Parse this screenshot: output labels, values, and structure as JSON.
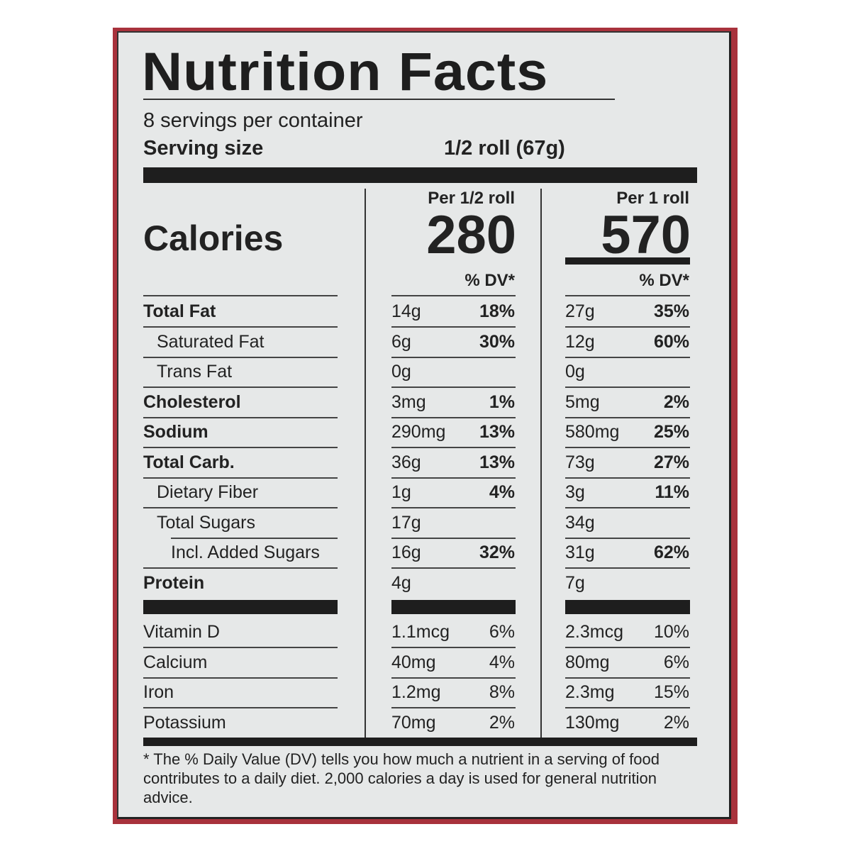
{
  "label": {
    "title": "Nutrition Facts",
    "servings_per_container": "8 servings per container",
    "serving_size_label": "Serving size",
    "serving_size_value": "1/2 roll (67g)",
    "calories_label": "Calories",
    "columns": [
      {
        "header": "Per 1/2 roll",
        "calories": "280",
        "dv_header": "% DV*"
      },
      {
        "header": "Per 1 roll",
        "calories": "570",
        "dv_header": "% DV*"
      }
    ],
    "nutrients": [
      {
        "name": "Total Fat",
        "bold": true,
        "indent": 0,
        "c1_amt": "14g",
        "c1_dv": "18%",
        "c2_amt": "27g",
        "c2_dv": "35%"
      },
      {
        "name": "Saturated Fat",
        "bold": false,
        "indent": 1,
        "c1_amt": "6g",
        "c1_dv": "30%",
        "c2_amt": "12g",
        "c2_dv": "60%"
      },
      {
        "name": "Trans Fat",
        "bold": false,
        "indent": 1,
        "c1_amt": "0g",
        "c1_dv": "",
        "c2_amt": "0g",
        "c2_dv": ""
      },
      {
        "name": "Cholesterol",
        "bold": true,
        "indent": 0,
        "c1_amt": "3mg",
        "c1_dv": "1%",
        "c2_amt": "5mg",
        "c2_dv": "2%"
      },
      {
        "name": "Sodium",
        "bold": true,
        "indent": 0,
        "c1_amt": "290mg",
        "c1_dv": "13%",
        "c2_amt": "580mg",
        "c2_dv": "25%"
      },
      {
        "name": "Total Carb.",
        "bold": true,
        "indent": 0,
        "c1_amt": "36g",
        "c1_dv": "13%",
        "c2_amt": "73g",
        "c2_dv": "27%"
      },
      {
        "name": "Dietary Fiber",
        "bold": false,
        "indent": 1,
        "c1_amt": "1g",
        "c1_dv": "4%",
        "c2_amt": "3g",
        "c2_dv": "11%"
      },
      {
        "name": "Total Sugars",
        "bold": false,
        "indent": 1,
        "c1_amt": "17g",
        "c1_dv": "",
        "c2_amt": "34g",
        "c2_dv": ""
      },
      {
        "name": "Incl. Added Sugars",
        "bold": false,
        "indent": 2,
        "c1_amt": "16g",
        "c1_dv": "32%",
        "c2_amt": "31g",
        "c2_dv": "62%"
      },
      {
        "name": "Protein",
        "bold": true,
        "indent": 0,
        "c1_amt": "4g",
        "c1_dv": "",
        "c2_amt": "7g",
        "c2_dv": ""
      }
    ],
    "vitamins": [
      {
        "name": "Vitamin D",
        "c1_amt": "1.1mcg",
        "c1_dv": "6%",
        "c2_amt": "2.3mcg",
        "c2_dv": "10%"
      },
      {
        "name": "Calcium",
        "c1_amt": "40mg",
        "c1_dv": "4%",
        "c2_amt": "80mg",
        "c2_dv": "6%"
      },
      {
        "name": "Iron",
        "c1_amt": "1.2mg",
        "c1_dv": "8%",
        "c2_amt": "2.3mg",
        "c2_dv": "15%"
      },
      {
        "name": "Potassium",
        "c1_amt": "70mg",
        "c1_dv": "2%",
        "c2_amt": "130mg",
        "c2_dv": "2%"
      }
    ],
    "footnote": "* The % Daily Value (DV) tells you how much a nutrient in a serving of food contributes to a daily diet. 2,000 calories a day is used for general nutrition advice."
  },
  "colors": {
    "frame": "#a8323c",
    "panel": "#e6e8e8",
    "ink": "#1e1e1e"
  }
}
